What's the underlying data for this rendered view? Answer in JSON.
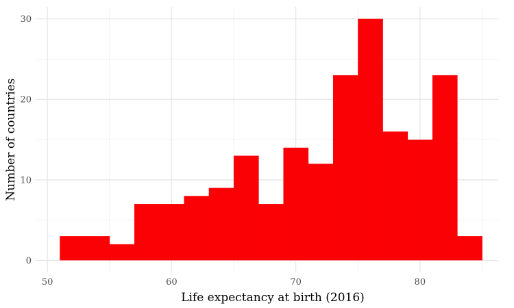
{
  "chart_data": {
    "type": "bar",
    "subtype": "histogram",
    "xlabel": "Life expectancy at birth (2016)",
    "ylabel": "Number of countries",
    "bin_width": 2,
    "bins": [
      {
        "start": 51,
        "end": 53,
        "count": 3
      },
      {
        "start": 53,
        "end": 55,
        "count": 3
      },
      {
        "start": 55,
        "end": 57,
        "count": 2
      },
      {
        "start": 57,
        "end": 59,
        "count": 7
      },
      {
        "start": 59,
        "end": 61,
        "count": 7
      },
      {
        "start": 61,
        "end": 63,
        "count": 8
      },
      {
        "start": 63,
        "end": 65,
        "count": 9
      },
      {
        "start": 65,
        "end": 67,
        "count": 13
      },
      {
        "start": 67,
        "end": 69,
        "count": 7
      },
      {
        "start": 69,
        "end": 71,
        "count": 14
      },
      {
        "start": 71,
        "end": 73,
        "count": 12
      },
      {
        "start": 73,
        "end": 75,
        "count": 23
      },
      {
        "start": 75,
        "end": 77,
        "count": 30
      },
      {
        "start": 77,
        "end": 79,
        "count": 16
      },
      {
        "start": 79,
        "end": 81,
        "count": 15
      },
      {
        "start": 81,
        "end": 83,
        "count": 23
      },
      {
        "start": 83,
        "end": 85,
        "count": 3
      }
    ],
    "xlim": [
      49,
      86.3
    ],
    "ylim": [
      -1.5,
      31.5
    ],
    "x_ticks": [
      50,
      60,
      70,
      80
    ],
    "y_ticks": [
      0,
      10,
      20,
      30
    ],
    "x_minor_ticks": [
      55,
      65,
      75,
      85
    ],
    "y_minor_ticks": [
      5,
      15,
      25
    ],
    "bar_color": "#FA0106",
    "grid": true
  }
}
